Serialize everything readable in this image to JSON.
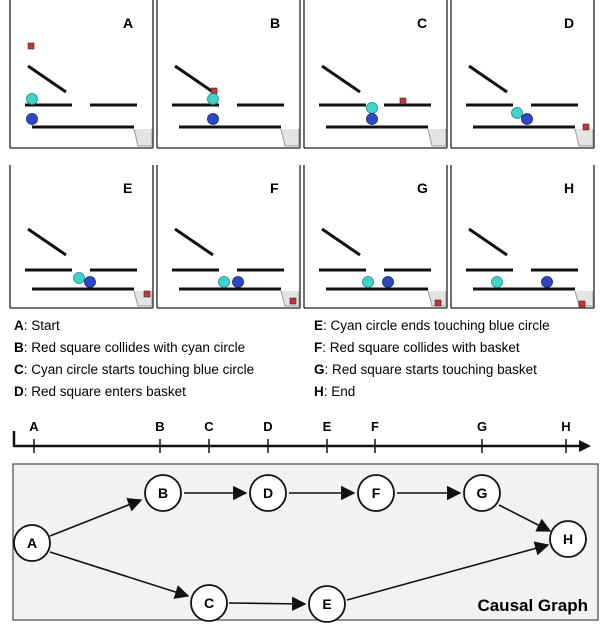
{
  "panels": [
    {
      "letter": "A"
    },
    {
      "letter": "B"
    },
    {
      "letter": "C"
    },
    {
      "letter": "D"
    },
    {
      "letter": "E"
    },
    {
      "letter": "F"
    },
    {
      "letter": "G"
    },
    {
      "letter": "H"
    }
  ],
  "legend": [
    {
      "key": "A",
      "text": ": Start"
    },
    {
      "key": "B",
      "text": ": Red square collides with cyan circle"
    },
    {
      "key": "C",
      "text": ": Cyan circle starts touching blue circle"
    },
    {
      "key": "D",
      "text": ": Red square enters basket"
    },
    {
      "key": "E",
      "text": ": Cyan circle ends touching blue circle"
    },
    {
      "key": "F",
      "text": ": Red square collides with basket"
    },
    {
      "key": "G",
      "text": ": Red square starts touching basket"
    },
    {
      "key": "H",
      "text": ": End"
    }
  ],
  "timeline": {
    "events": [
      "A",
      "B",
      "C",
      "D",
      "E",
      "F",
      "G",
      "H"
    ]
  },
  "causal_graph": {
    "title": "Causal Graph",
    "nodes": [
      "A",
      "B",
      "C",
      "D",
      "E",
      "F",
      "G",
      "H"
    ],
    "edges": [
      [
        "A",
        "B"
      ],
      [
        "B",
        "D"
      ],
      [
        "D",
        "F"
      ],
      [
        "F",
        "G"
      ],
      [
        "G",
        "H"
      ],
      [
        "A",
        "C"
      ],
      [
        "C",
        "E"
      ],
      [
        "E",
        "H"
      ]
    ]
  },
  "colors": {
    "cyan_ball": "#3fd3c9",
    "blue_ball": "#2d48c4",
    "red_square": "#b83a3a",
    "graph_bg": "#f2f2f2"
  }
}
